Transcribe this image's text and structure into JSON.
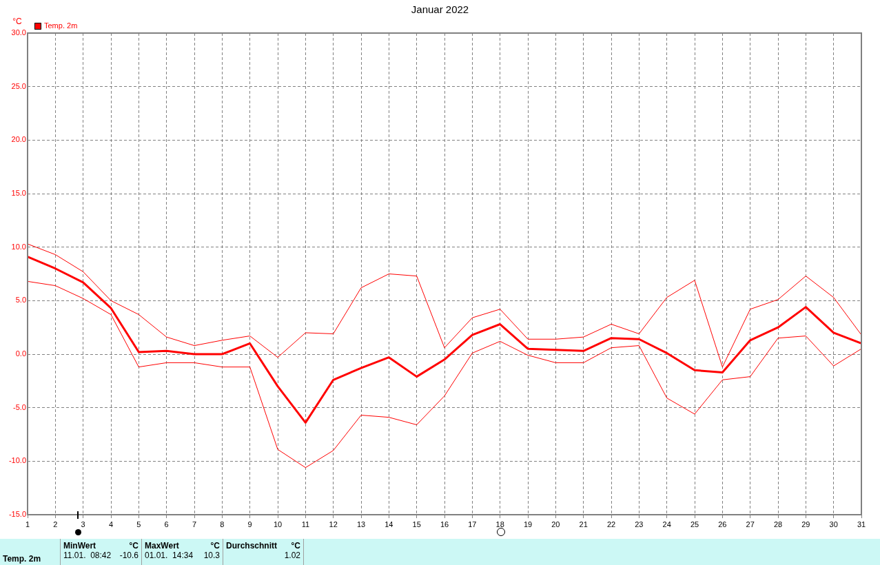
{
  "chart_data": {
    "type": "line",
    "title": "Januar 2022",
    "ylabel": "°C",
    "legend": "top left",
    "grid": true,
    "line_style": "solid",
    "marker": "none",
    "x": [
      1,
      2,
      3,
      4,
      5,
      6,
      7,
      8,
      9,
      10,
      11,
      12,
      13,
      14,
      15,
      16,
      17,
      18,
      19,
      20,
      21,
      22,
      23,
      24,
      25,
      26,
      27,
      28,
      29,
      30,
      31
    ],
    "xlim": [
      1,
      31
    ],
    "xticks": [
      1,
      2,
      3,
      4,
      5,
      6,
      7,
      8,
      9,
      10,
      11,
      12,
      13,
      14,
      15,
      16,
      17,
      18,
      19,
      20,
      21,
      22,
      23,
      24,
      25,
      26,
      27,
      28,
      29,
      30,
      31
    ],
    "ylim": [
      -15,
      30
    ],
    "yticks": [
      {
        "value": -15,
        "label": "-15.0"
      },
      {
        "value": -10,
        "label": "-10.0"
      },
      {
        "value": -5,
        "label": "-5.0"
      },
      {
        "value": 0,
        "label": "0.0"
      },
      {
        "value": 5,
        "label": "5.0"
      },
      {
        "value": 10,
        "label": "10.0"
      },
      {
        "value": 15,
        "label": "15.0"
      },
      {
        "value": 20,
        "label": "20.0"
      },
      {
        "value": 25,
        "label": "25.0"
      },
      {
        "value": 30,
        "label": "30.0"
      }
    ],
    "series": [
      {
        "name": "Temp. 2m",
        "color": "#ff0000",
        "values": [
          9.1,
          8.0,
          6.7,
          4.3,
          0.2,
          0.3,
          0.0,
          0.0,
          1.0,
          -3.0,
          -6.4,
          -2.4,
          -1.3,
          -0.3,
          -2.1,
          -0.5,
          1.8,
          2.8,
          0.5,
          0.4,
          0.3,
          1.5,
          1.4,
          0.1,
          -1.5,
          -1.7,
          1.3,
          2.5,
          4.4,
          2.0,
          1.0
        ]
      },
      {
        "color": "#ff0000",
        "values": [
          10.3,
          9.3,
          7.7,
          5.0,
          3.7,
          1.6,
          0.8,
          1.3,
          1.7,
          -0.3,
          2.0,
          1.9,
          6.2,
          7.5,
          7.3,
          0.6,
          3.4,
          4.2,
          1.4,
          1.4,
          1.6,
          2.8,
          1.9,
          5.3,
          6.9,
          -1.2,
          4.2,
          5.1,
          7.3,
          5.3,
          1.8
        ]
      },
      {
        "color": "#ff0000",
        "values": [
          6.8,
          6.4,
          5.2,
          3.7,
          -1.2,
          -0.8,
          -0.8,
          -1.2,
          -1.2,
          -8.9,
          -10.6,
          -9.0,
          -5.7,
          -5.9,
          -6.6,
          -3.9,
          0.1,
          1.2,
          -0.1,
          -0.8,
          -0.8,
          0.6,
          0.8,
          -4.1,
          -5.6,
          -2.4,
          -2.1,
          1.5,
          1.7,
          -1.1,
          0.5
        ]
      }
    ],
    "annotations": [
      "Temp. 2m",
      "MinWert",
      "°C",
      "11.01.  08:42",
      "-10.6",
      "MaxWert",
      "°C",
      "01.01.  14:34",
      "10.3",
      "Durchschnitt",
      "°C",
      "1.02"
    ]
  }
}
